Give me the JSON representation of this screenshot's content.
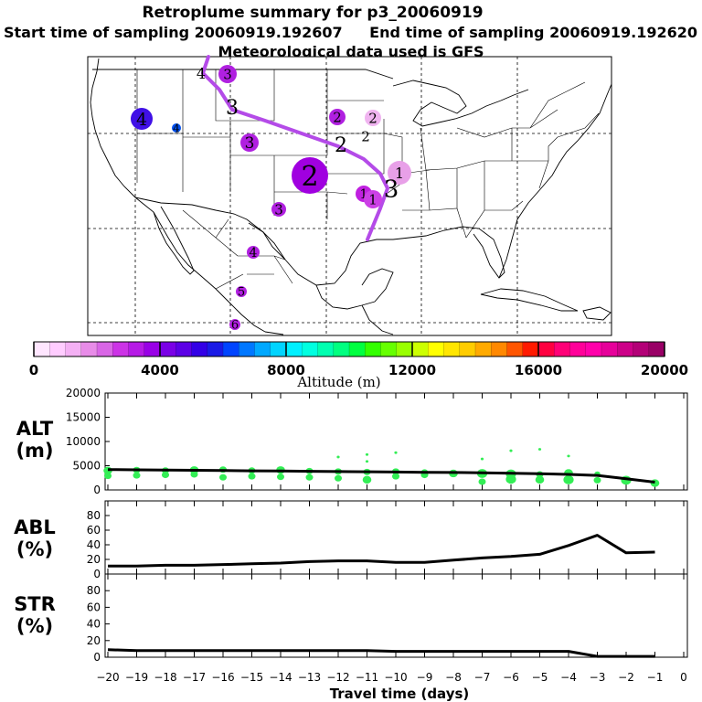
{
  "title": "Retroplume summary for p3_20060919",
  "subtitle_start": "Start time of sampling 20060919.192607",
  "subtitle_end": "End time of sampling 20060919.192620",
  "subtitle_met": "Meteorological data used is GFS",
  "colorbar": {
    "label": "Altitude (m)",
    "min": 0,
    "max": 20000,
    "tick_values": [
      0,
      4000,
      8000,
      12000,
      16000,
      20000
    ],
    "tick_labels": [
      "0",
      "4000",
      "8000",
      "12000",
      "16000",
      "20000"
    ],
    "colors": [
      "#ffe6ff",
      "#ffccff",
      "#f4b0f4",
      "#e88ce8",
      "#d966e6",
      "#cc33e6",
      "#b61ae6",
      "#9900e6",
      "#7a00e6",
      "#5c00e6",
      "#3300e6",
      "#1a1ae6",
      "#0044ff",
      "#0077ff",
      "#00a8ff",
      "#00d4ff",
      "#00f0ff",
      "#00ffe0",
      "#00ffb0",
      "#00ff80",
      "#00ff40",
      "#33ff00",
      "#66ff00",
      "#99ff00",
      "#ccff00",
      "#ffff00",
      "#ffe600",
      "#ffcc00",
      "#ffaa00",
      "#ff8800",
      "#ff5500",
      "#ff1a00",
      "#ff0040",
      "#ff0077",
      "#ff0099",
      "#ff00aa",
      "#e6009a",
      "#cc0088",
      "#b30077",
      "#990066"
    ]
  },
  "map": {
    "trajectory_color": "#b44be8",
    "markers": [
      {
        "label": "1",
        "color": "#e8a0e8"
      },
      {
        "label": "1",
        "color": "#c020e0"
      },
      {
        "label": "1",
        "color": "#cc40e6"
      },
      {
        "label": "2",
        "color": "#a000e0"
      },
      {
        "label": "2",
        "color": "#b020e0"
      },
      {
        "label": "2",
        "color": "#f0b4f0"
      },
      {
        "label": "2",
        "color": "#b020e0"
      },
      {
        "label": "2",
        "color": "#b020e0"
      },
      {
        "label": "3",
        "color": "#b020e0"
      },
      {
        "label": "3",
        "color": "#a000e0"
      },
      {
        "label": "3",
        "color": "#b020e0"
      },
      {
        "label": "3",
        "color": "#b020e0"
      },
      {
        "label": "3",
        "color": "#b020e0"
      },
      {
        "label": "4",
        "color": "#4010e6"
      },
      {
        "label": "4",
        "color": "#0050f0"
      },
      {
        "label": "4",
        "color": "#b020e0"
      },
      {
        "label": "4",
        "color": "#b020e0"
      },
      {
        "label": "5",
        "color": "#b020e0"
      },
      {
        "label": "6",
        "color": "#b020e0"
      }
    ]
  },
  "chart_data": [
    {
      "type": "line",
      "panel_label": [
        "ALT",
        "(m)"
      ],
      "x": [
        -20,
        -19,
        -18,
        -17,
        -16,
        -15,
        -14,
        -13,
        -12,
        -11,
        -10,
        -9,
        -8,
        -7,
        -6,
        -5,
        -4,
        -3,
        -2,
        -1
      ],
      "series": [
        {
          "name": "ALT",
          "color": "#000000",
          "values": [
            4200,
            4150,
            4100,
            4050,
            4000,
            3950,
            3900,
            3850,
            3800,
            3750,
            3700,
            3650,
            3600,
            3550,
            3450,
            3350,
            3200,
            3000,
            2300,
            1600
          ]
        }
      ],
      "scatter": {
        "color": "#33ee55",
        "x": [
          -20,
          -20,
          -19,
          -19,
          -18,
          -18,
          -17,
          -17,
          -16,
          -16,
          -15,
          -15,
          -14,
          -14,
          -13,
          -13,
          -12,
          -12,
          -12,
          -11,
          -11,
          -11,
          -11,
          -10,
          -10,
          -10,
          -9,
          -9,
          -8,
          -7,
          -7,
          -7,
          -6,
          -6,
          -6,
          -5,
          -5,
          -5,
          -4,
          -4,
          -4,
          -3,
          -3,
          -2,
          -1
        ],
        "y": [
          2900,
          4000,
          3000,
          4100,
          3100,
          4000,
          3200,
          4100,
          2600,
          4200,
          2800,
          4000,
          2700,
          4100,
          2600,
          3900,
          2400,
          3800,
          6800,
          2100,
          3700,
          5900,
          7300,
          2800,
          3800,
          7700,
          3100,
          3600,
          3400,
          1700,
          3400,
          6400,
          2200,
          3300,
          8100,
          2100,
          3200,
          8400,
          2100,
          3500,
          7000,
          2000,
          3300,
          2000,
          1400
        ],
        "size": [
          5,
          6,
          5,
          5,
          5,
          5,
          5,
          6,
          5,
          5,
          5,
          5,
          5,
          6,
          5,
          5,
          5,
          5,
          2,
          6,
          5,
          2,
          2,
          5,
          5,
          2,
          5,
          5,
          6,
          5,
          7,
          2,
          7,
          7,
          2,
          6,
          5,
          2,
          7,
          6,
          2,
          5,
          4,
          7,
          6
        ]
      },
      "xlim": [
        -20,
        0
      ],
      "ylim": [
        0,
        20000
      ],
      "yticks": [
        0,
        5000,
        10000,
        15000,
        20000
      ],
      "ytick_labels": [
        "0",
        "5000",
        "10000",
        "15000",
        "20000"
      ]
    },
    {
      "type": "line",
      "panel_label": [
        "ABL",
        "(%)"
      ],
      "x": [
        -20,
        -19,
        -18,
        -17,
        -16,
        -15,
        -14,
        -13,
        -12,
        -11,
        -10,
        -9,
        -8,
        -7,
        -6,
        -5,
        -4,
        -3,
        -2,
        -1
      ],
      "series": [
        {
          "name": "ABL",
          "color": "#000000",
          "values": [
            11,
            11,
            12,
            12,
            13,
            14,
            15,
            17,
            18,
            18,
            16,
            16,
            19,
            22,
            24,
            27,
            39,
            53,
            29,
            30
          ]
        }
      ],
      "xlim": [
        -20,
        0
      ],
      "ylim": [
        0,
        100
      ],
      "yticks": [
        0,
        20,
        40,
        60,
        80
      ],
      "ytick_labels": [
        "0",
        "20",
        "40",
        "60",
        "80"
      ]
    },
    {
      "type": "line",
      "panel_label": [
        "STR",
        "(%)"
      ],
      "x": [
        -20,
        -19,
        -18,
        -17,
        -16,
        -15,
        -14,
        -13,
        -12,
        -11,
        -10,
        -9,
        -8,
        -7,
        -6,
        -5,
        -4,
        -3,
        -2,
        -1
      ],
      "series": [
        {
          "name": "STR",
          "color": "#000000",
          "values": [
            9,
            8,
            8,
            8,
            8,
            8,
            8,
            8,
            8,
            8,
            7,
            7,
            7,
            7,
            7,
            7,
            7,
            1,
            1,
            1
          ]
        }
      ],
      "xlim": [
        -20,
        0
      ],
      "ylim": [
        0,
        100
      ],
      "yticks": [
        0,
        20,
        40,
        60,
        80
      ],
      "ytick_labels": [
        "0",
        "20",
        "40",
        "60",
        "80"
      ],
      "xlabel": "Travel time (days)",
      "xticks": [
        -20,
        -19,
        -18,
        -17,
        -16,
        -15,
        -14,
        -13,
        -12,
        -11,
        -10,
        -9,
        -8,
        -7,
        -6,
        -5,
        -4,
        -3,
        -2,
        -1,
        0
      ],
      "xtick_labels": [
        "−20",
        "−19",
        "−18",
        "−17",
        "−16",
        "−15",
        "−14",
        "−13",
        "−12",
        "−11",
        "−10",
        "−9",
        "−8",
        "−7",
        "−6",
        "−5",
        "−4",
        "−3",
        "−2",
        "−1",
        "0"
      ]
    }
  ]
}
